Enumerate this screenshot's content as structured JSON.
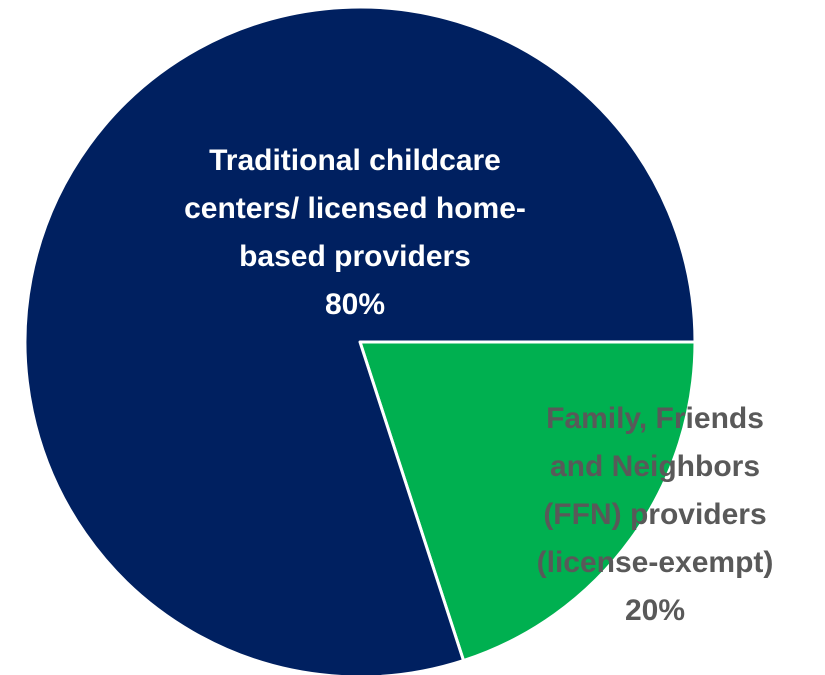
{
  "chart_data": {
    "type": "pie",
    "slices": [
      {
        "label_lines": [
          "Family, Friends",
          "and Neighbors",
          "(FFN) providers",
          "(license-exempt)"
        ],
        "value": 20,
        "value_label": "20%",
        "color": "#00b050",
        "label_color": "#595959"
      },
      {
        "label_lines": [
          "Traditional childcare",
          "centers/ licensed home-",
          "based providers"
        ],
        "value": 80,
        "value_label": "80%",
        "color": "#002060",
        "label_color": "#ffffff"
      }
    ],
    "start_angle_deg": 90,
    "direction": "clockwise",
    "border_color": "#ffffff"
  }
}
